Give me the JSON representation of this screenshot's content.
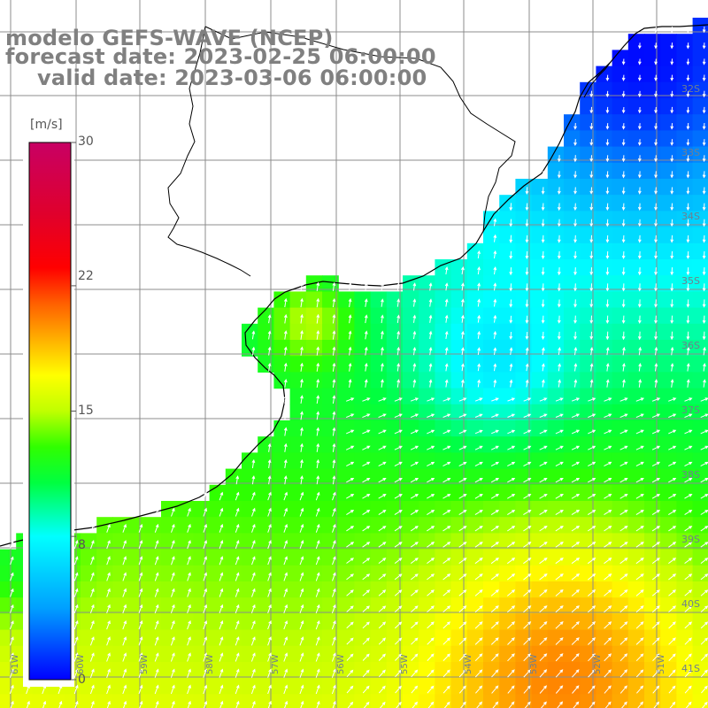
{
  "title": {
    "line1": "modelo GEFS-WAVE (NCEP)",
    "line2": "forecast date: 2023-02-25 06:00:00",
    "line3": "valid date: 2023-03-06 06:00:00"
  },
  "colorbar": {
    "unit": "[m/s]",
    "ticks": [
      "30",
      "22",
      "15",
      "8",
      "0"
    ],
    "tick_values": [
      30,
      22,
      15,
      8,
      0
    ],
    "min": 0,
    "max": 30,
    "colors": [
      "#0000ff",
      "#00a0ff",
      "#00ffff",
      "#00ff40",
      "#30ff00",
      "#c0ff00",
      "#ffff00",
      "#ffb000",
      "#ff6000",
      "#ff0000",
      "#e0002c",
      "#c80064"
    ],
    "color_stops": [
      0,
      4,
      8,
      11,
      13,
      15,
      17,
      19,
      21,
      23,
      26,
      30
    ]
  },
  "lat_labels": [
    "32S",
    "33S",
    "34S",
    "35S",
    "36S",
    "37S",
    "38S",
    "39S",
    "40S",
    "41S"
  ],
  "lon_labels": [
    "61W",
    "60W",
    "59W",
    "58W",
    "57W",
    "56W",
    "55W",
    "54W",
    "53W",
    "52W",
    "51W"
  ],
  "map_style": {
    "land_color": "#ffffff",
    "grid_color": "#8c8c8c",
    "coast_color": "#000000",
    "arrow_color": "#ffffff"
  }
}
